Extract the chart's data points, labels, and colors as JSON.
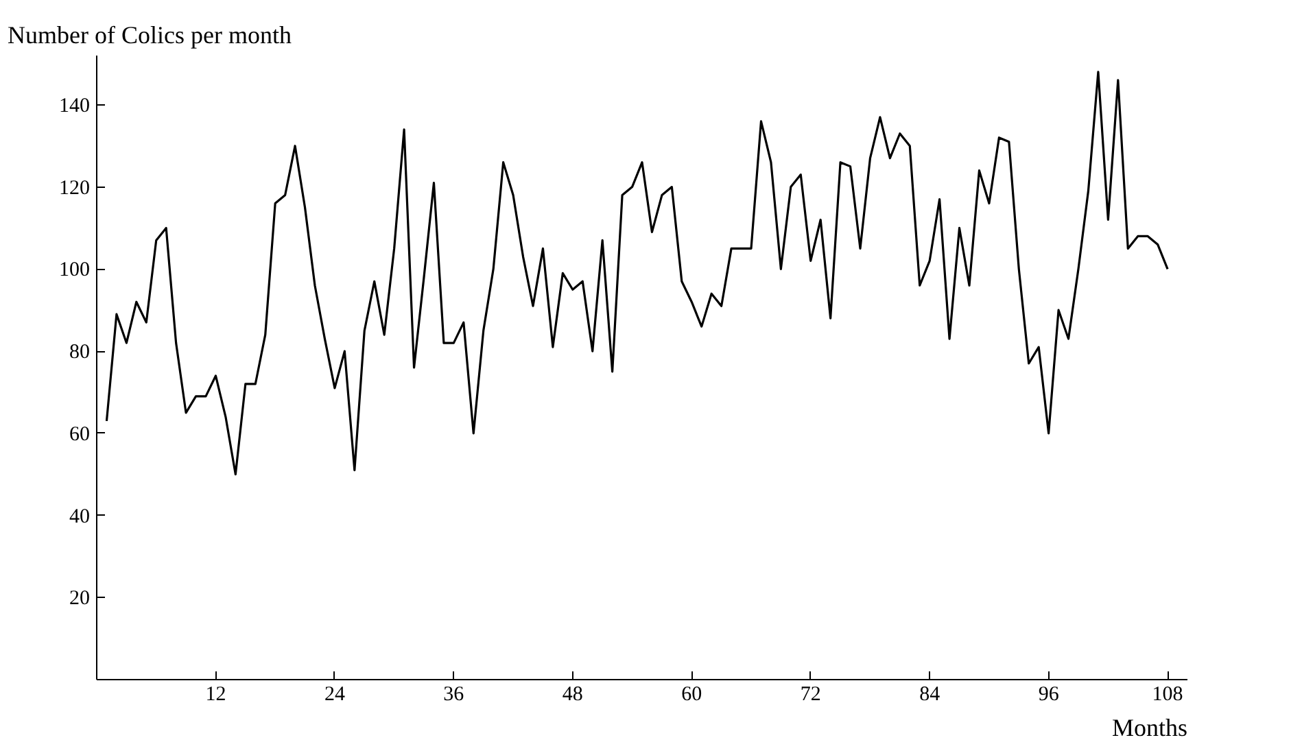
{
  "chart_data": {
    "type": "line",
    "ylabel": "Number of Colics per month",
    "xlabel": "Months",
    "x": [
      1,
      2,
      3,
      4,
      5,
      6,
      7,
      8,
      9,
      10,
      11,
      12,
      13,
      14,
      15,
      16,
      17,
      18,
      19,
      20,
      21,
      22,
      23,
      24,
      25,
      26,
      27,
      28,
      29,
      30,
      31,
      32,
      33,
      34,
      35,
      36,
      37,
      38,
      39,
      40,
      41,
      42,
      43,
      44,
      45,
      46,
      47,
      48,
      49,
      50,
      51,
      52,
      53,
      54,
      55,
      56,
      57,
      58,
      59,
      60,
      61,
      62,
      63,
      64,
      65,
      66,
      67,
      68,
      69,
      70,
      71,
      72,
      73,
      74,
      75,
      76,
      77,
      78,
      79,
      80,
      81,
      82,
      83,
      84,
      85,
      86,
      87,
      88,
      89,
      90,
      91,
      92,
      93,
      94,
      95,
      96,
      97,
      98,
      99,
      100,
      101,
      102,
      103,
      104,
      105,
      106,
      107,
      108
    ],
    "series": [
      {
        "color": "#000000",
        "values": [
          63,
          89,
          82,
          92,
          87,
          107,
          110,
          82,
          65,
          69,
          69,
          74,
          64,
          50,
          72,
          72,
          84,
          116,
          118,
          130,
          115,
          96,
          83,
          71,
          80,
          51,
          85,
          97,
          84,
          105,
          134,
          76,
          98,
          121,
          82,
          82,
          87,
          60,
          85,
          100,
          126,
          118,
          103,
          91,
          105,
          81,
          99,
          95,
          97,
          80,
          107,
          75,
          118,
          120,
          126,
          109,
          118,
          120,
          97,
          92,
          86,
          94,
          91,
          105,
          105,
          105,
          136,
          126,
          100,
          120,
          123,
          102,
          112,
          88,
          126,
          125,
          105,
          127,
          137,
          127,
          133,
          130,
          96,
          102,
          117,
          83,
          110,
          96,
          124,
          116,
          132,
          131,
          100,
          77,
          81,
          60,
          90,
          83,
          100,
          119,
          148,
          112,
          146,
          105,
          108,
          108,
          106,
          100
        ]
      }
    ],
    "xlim": [
      0,
      110
    ],
    "ylim": [
      0,
      152
    ],
    "xticks": [
      12,
      24,
      36,
      48,
      60,
      72,
      84,
      96,
      108
    ],
    "yticks": [
      20,
      40,
      60,
      80,
      100,
      120,
      140
    ],
    "grid": false,
    "marker": "none",
    "line_style": "solid"
  }
}
